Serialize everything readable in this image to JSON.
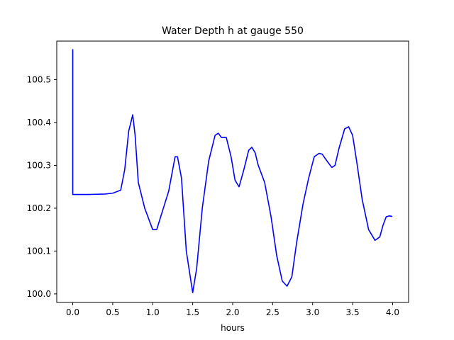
{
  "chart_data": {
    "type": "line",
    "title": "Water Depth h at gauge 550",
    "xlabel": "hours",
    "ylabel": "",
    "xlim": [
      -0.2,
      4.2
    ],
    "ylim": [
      99.98,
      100.59
    ],
    "xticks": [
      0.0,
      0.5,
      1.0,
      1.5,
      2.0,
      2.5,
      3.0,
      3.5,
      4.0
    ],
    "xtick_labels": [
      "0.0",
      "0.5",
      "1.0",
      "1.5",
      "2.0",
      "2.5",
      "3.0",
      "3.5",
      "4.0"
    ],
    "yticks": [
      100.0,
      100.1,
      100.2,
      100.3,
      100.4,
      100.5
    ],
    "ytick_labels": [
      "100.0",
      "100.1",
      "100.2",
      "100.3",
      "100.4",
      "100.5"
    ],
    "grid": false,
    "series": [
      {
        "color": "#0000ff",
        "x": [
          0.0,
          0.0,
          0.0,
          0.2,
          0.4,
          0.5,
          0.6,
          0.65,
          0.7,
          0.75,
          0.78,
          0.82,
          0.9,
          1.0,
          1.05,
          1.1,
          1.2,
          1.28,
          1.31,
          1.36,
          1.42,
          1.5,
          1.55,
          1.62,
          1.7,
          1.78,
          1.82,
          1.86,
          1.92,
          1.98,
          2.03,
          2.08,
          2.14,
          2.2,
          2.24,
          2.28,
          2.32,
          2.4,
          2.48,
          2.55,
          2.62,
          2.68,
          2.74,
          2.8,
          2.88,
          2.95,
          3.02,
          3.08,
          3.12,
          3.18,
          3.24,
          3.28,
          3.33,
          3.4,
          3.45,
          3.5,
          3.55,
          3.62,
          3.7,
          3.78,
          3.84,
          3.88,
          3.92,
          3.96,
          3.99
        ],
        "y": [
          100.57,
          100.4,
          100.232,
          100.232,
          100.233,
          100.235,
          100.242,
          100.29,
          100.38,
          100.418,
          100.37,
          100.26,
          100.2,
          100.15,
          100.15,
          100.18,
          100.24,
          100.32,
          100.32,
          100.27,
          100.1,
          100.003,
          100.06,
          100.2,
          100.31,
          100.37,
          100.375,
          100.365,
          100.365,
          100.32,
          100.265,
          100.25,
          100.29,
          100.335,
          100.342,
          100.33,
          100.3,
          100.26,
          100.18,
          100.09,
          100.03,
          100.018,
          100.04,
          100.12,
          100.21,
          100.27,
          100.32,
          100.328,
          100.326,
          100.31,
          100.295,
          100.3,
          100.34,
          100.385,
          100.39,
          100.37,
          100.31,
          100.22,
          100.15,
          100.125,
          100.133,
          100.16,
          100.18,
          100.182,
          100.181
        ]
      }
    ]
  }
}
